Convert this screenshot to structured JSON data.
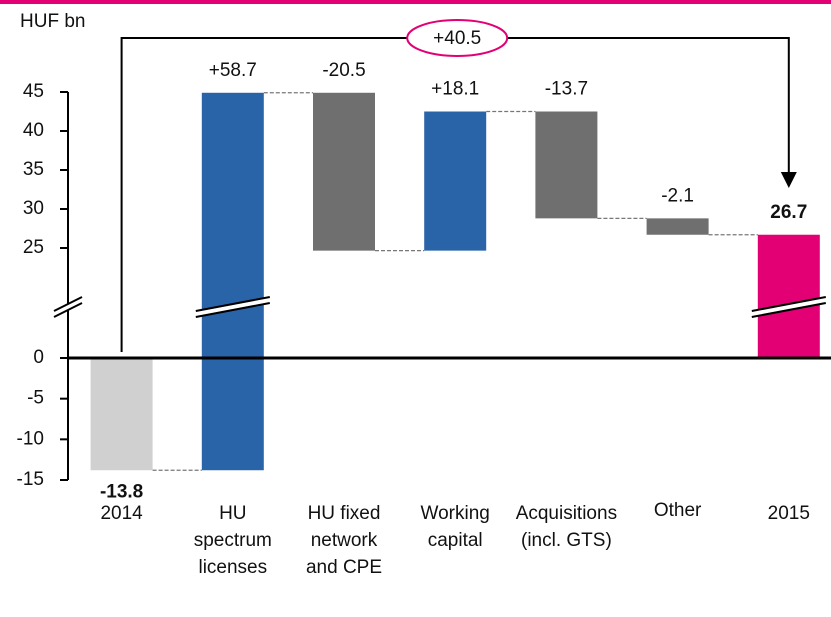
{
  "chart_data": {
    "type": "waterfall",
    "unit_label": "HUF bn",
    "annotation": "+40.5",
    "categories": [
      "2014",
      "HU\nspectrum\nlicenses",
      "HU fixed\nnetwork\nand CPE",
      "Working\ncapital",
      "Acquisitions\n(incl. GTS)",
      "Other",
      "2015"
    ],
    "values": [
      -13.8,
      58.7,
      -20.5,
      18.1,
      -13.7,
      -2.1,
      26.7
    ],
    "value_labels": [
      "-13.8",
      "+58.7",
      "-20.5",
      "+18.1",
      "-13.7",
      "-2.1",
      "26.7"
    ],
    "colors": [
      "#d0d0d0",
      "#2a64a8",
      "#6f6f6f",
      "#2a64a8",
      "#6f6f6f",
      "#6f6f6f",
      "#e20074"
    ],
    "ylim": [
      -15,
      45
    ],
    "axis_break": [
      0,
      25
    ],
    "yticks": [
      45,
      40,
      35,
      30,
      25,
      0,
      -5,
      -10,
      -15
    ]
  }
}
